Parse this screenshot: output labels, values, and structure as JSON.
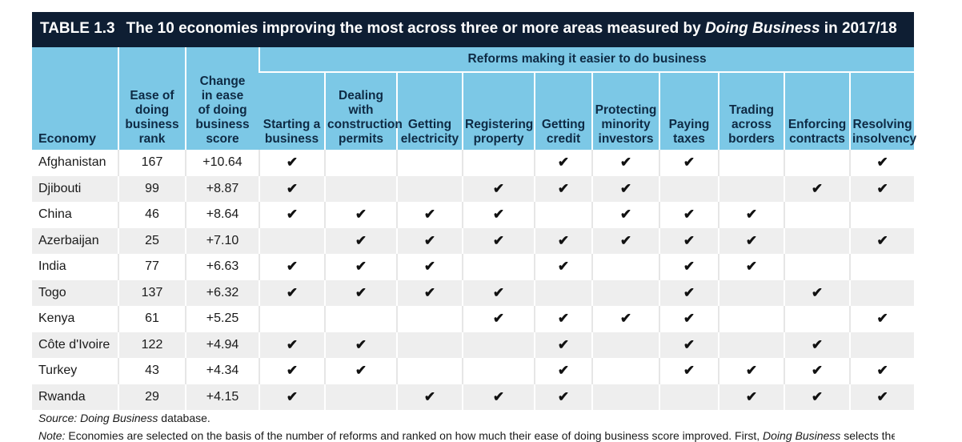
{
  "table": {
    "label": "TABLE 1.3",
    "title_pre": "The 10 economies improving the most across three or more areas measured by ",
    "title_italic": "Doing Business",
    "title_post": " in 2017/18",
    "group_header": "Reforms making it easier to do business",
    "columns": {
      "economy": "Economy",
      "rank": [
        "Ease of",
        "doing",
        "business",
        "rank"
      ],
      "change": [
        "Change",
        "in ease",
        "of doing",
        "business",
        "score"
      ],
      "areas": [
        [
          "Starting a",
          "business"
        ],
        [
          "Dealing",
          "with",
          "construction",
          "permits"
        ],
        [
          "Getting",
          "electricity"
        ],
        [
          "Registering",
          "property"
        ],
        [
          "Getting",
          "credit"
        ],
        [
          "Protecting",
          "minority",
          "investors"
        ],
        [
          "Paying",
          "taxes"
        ],
        [
          "Trading",
          "across",
          "borders"
        ],
        [
          "Enforcing",
          "contracts"
        ],
        [
          "Resolving",
          "insolvency"
        ]
      ]
    },
    "check_symbol": "✔",
    "rows": [
      {
        "economy": "Afghanistan",
        "rank": "167",
        "change": "+10.64",
        "reforms": [
          1,
          0,
          0,
          0,
          1,
          1,
          1,
          0,
          0,
          1
        ]
      },
      {
        "economy": "Djibouti",
        "rank": "99",
        "change": "+8.87",
        "reforms": [
          1,
          0,
          0,
          1,
          1,
          1,
          0,
          0,
          1,
          1
        ]
      },
      {
        "economy": "China",
        "rank": "46",
        "change": "+8.64",
        "reforms": [
          1,
          1,
          1,
          1,
          0,
          1,
          1,
          1,
          0,
          0
        ]
      },
      {
        "economy": "Azerbaijan",
        "rank": "25",
        "change": "+7.10",
        "reforms": [
          0,
          1,
          1,
          1,
          1,
          1,
          1,
          1,
          0,
          1
        ]
      },
      {
        "economy": "India",
        "rank": "77",
        "change": "+6.63",
        "reforms": [
          1,
          1,
          1,
          0,
          1,
          0,
          1,
          1,
          0,
          0
        ]
      },
      {
        "economy": "Togo",
        "rank": "137",
        "change": "+6.32",
        "reforms": [
          1,
          1,
          1,
          1,
          0,
          0,
          1,
          0,
          1,
          0
        ]
      },
      {
        "economy": "Kenya",
        "rank": "61",
        "change": "+5.25",
        "reforms": [
          0,
          0,
          0,
          1,
          1,
          1,
          1,
          0,
          0,
          1
        ]
      },
      {
        "economy": "Côte d'Ivoire",
        "rank": "122",
        "change": "+4.94",
        "reforms": [
          1,
          1,
          0,
          0,
          1,
          0,
          1,
          0,
          1,
          0
        ]
      },
      {
        "economy": "Turkey",
        "rank": "43",
        "change": "+4.34",
        "reforms": [
          1,
          1,
          0,
          0,
          1,
          0,
          1,
          1,
          1,
          1
        ]
      },
      {
        "economy": "Rwanda",
        "rank": "29",
        "change": "+4.15",
        "reforms": [
          1,
          0,
          1,
          1,
          1,
          0,
          0,
          1,
          1,
          1
        ]
      }
    ]
  },
  "source": {
    "label": "Source:",
    "italic": "Doing Business",
    "rest": " database."
  },
  "note": {
    "label": "Note:",
    "text_pre": " Economies are selected on the basis of the number of reforms and ranked on how much their ease of doing business score improved. First, ",
    "text_italic": "Doing Business",
    "text_post": " selects the economies"
  },
  "colors": {
    "title_bg": "#0e1e33",
    "header_bg": "#7cc8e6",
    "row_alt": "#eeeeee"
  }
}
